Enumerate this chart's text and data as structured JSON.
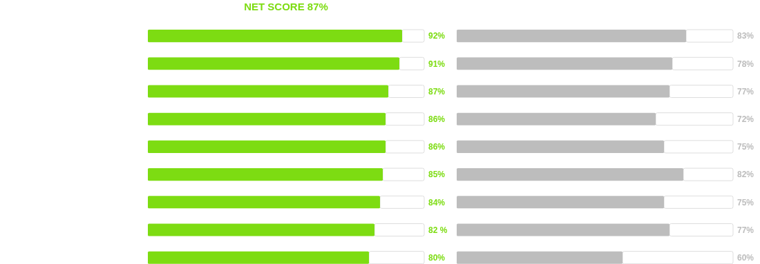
{
  "chart_data": [
    {
      "type": "bar",
      "orientation": "horizontal",
      "title": "NET SCORE 87%",
      "categories": [
        null,
        null,
        null,
        null,
        null,
        null,
        null,
        null,
        null
      ],
      "xlim": [
        0,
        100
      ],
      "series": [
        {
          "color": "#7ddc12",
          "values": [
            92,
            91,
            87,
            86,
            86,
            85,
            84,
            82,
            80
          ],
          "value_labels": [
            "92%",
            "91%",
            "87%",
            "86%",
            "86%",
            "85%",
            "84%",
            "82 %",
            "80%"
          ]
        }
      ]
    },
    {
      "type": "bar",
      "orientation": "horizontal",
      "categories": [
        null,
        null,
        null,
        null,
        null,
        null,
        null,
        null,
        null
      ],
      "xlim": [
        0,
        100
      ],
      "series": [
        {
          "color": "#bdbdbd",
          "values": [
            83,
            78,
            77,
            72,
            75,
            82,
            75,
            77,
            60
          ],
          "value_labels": [
            "83%",
            "78%",
            "77%",
            "72%",
            "75%",
            "82%",
            "75%",
            "77%",
            "60%"
          ]
        }
      ]
    }
  ]
}
